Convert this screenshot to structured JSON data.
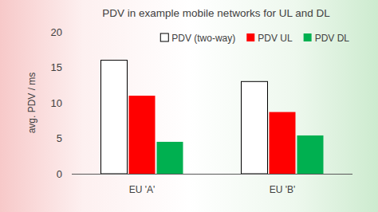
{
  "chart_data": {
    "type": "bar",
    "title": "PDV in example mobile networks for UL and DL",
    "y_label": "avg. PDV / ms",
    "categories": [
      "EU 'A'",
      "EU 'B'"
    ],
    "series": [
      {
        "name": "PDV (two-way)",
        "color": "#ffffff",
        "values": [
          16,
          13
        ]
      },
      {
        "name": "PDV UL",
        "color": "#ff0000",
        "values": [
          11,
          8.7
        ]
      },
      {
        "name": "PDV DL",
        "color": "#00b050",
        "values": [
          4.5,
          5.4
        ]
      }
    ],
    "ylim": [
      0,
      20
    ],
    "yticks": [
      0,
      5,
      10,
      15,
      20
    ],
    "grid": false,
    "legend": "top-right"
  }
}
